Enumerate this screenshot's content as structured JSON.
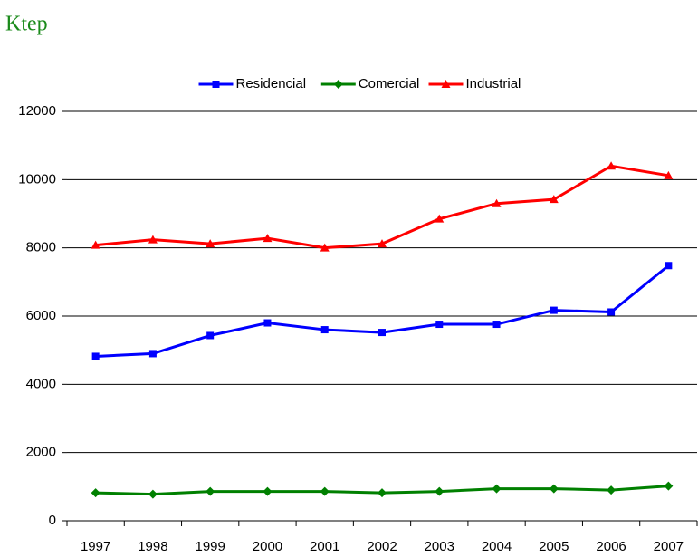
{
  "chart_data": {
    "type": "line",
    "subtitle": "Ktep",
    "categories": [
      "1997",
      "1998",
      "1999",
      "2000",
      "2001",
      "2002",
      "2003",
      "2004",
      "2005",
      "2006",
      "2007"
    ],
    "series": [
      {
        "name": "Residencial",
        "color": "#0000ff",
        "marker": "square",
        "values": [
          4820,
          4900,
          5430,
          5800,
          5600,
          5520,
          5760,
          5760,
          6170,
          6120,
          7480
        ]
      },
      {
        "name": "Comercial",
        "color": "#008000",
        "marker": "diamond",
        "values": [
          820,
          780,
          860,
          860,
          860,
          820,
          860,
          940,
          940,
          900,
          1020
        ]
      },
      {
        "name": "Industrial",
        "color": "#ff0000",
        "marker": "triangle",
        "values": [
          8080,
          8240,
          8120,
          8280,
          8000,
          8120,
          8850,
          9300,
          9420,
          10400,
          10120
        ]
      }
    ],
    "ylim": [
      0,
      12000
    ],
    "yticks": [
      0,
      2000,
      4000,
      6000,
      8000,
      10000,
      12000
    ],
    "grid": true,
    "legend": "top"
  }
}
